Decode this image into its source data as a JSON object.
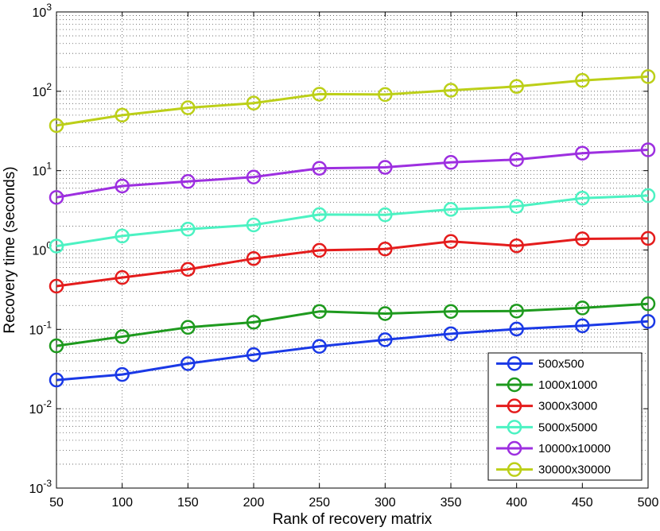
{
  "chart_data": {
    "type": "line",
    "xlabel": "Rank of recovery matrix",
    "ylabel": "Recovery time (seconds)",
    "yscale": "log",
    "xlim": [
      50,
      500
    ],
    "ylim": [
      0.001,
      1000
    ],
    "grid": "on (major and minor, dotted)",
    "legend_position": "bottom-right",
    "x": [
      50,
      100,
      150,
      200,
      250,
      300,
      350,
      400,
      450,
      500
    ],
    "x_tick_labels": [
      "50",
      "100",
      "150",
      "200",
      "250",
      "300",
      "350",
      "400",
      "450",
      "500"
    ],
    "y_tick_labels": [
      {
        "base": "10",
        "exp": "-3"
      },
      {
        "base": "10",
        "exp": "-2"
      },
      {
        "base": "10",
        "exp": "-1"
      },
      {
        "base": "10",
        "exp": "0"
      },
      {
        "base": "10",
        "exp": "1"
      },
      {
        "base": "10",
        "exp": "2"
      },
      {
        "base": "10",
        "exp": "3"
      }
    ],
    "series": [
      {
        "name": "500x500",
        "color": "#1a39e6",
        "values": [
          0.023,
          0.027,
          0.037,
          0.048,
          0.061,
          0.074,
          0.088,
          0.101,
          0.111,
          0.126
        ]
      },
      {
        "name": "1000x1000",
        "color": "#1e9a1e",
        "values": [
          0.062,
          0.081,
          0.106,
          0.123,
          0.168,
          0.158,
          0.168,
          0.17,
          0.186,
          0.21
        ]
      },
      {
        "name": "3000x3000",
        "color": "#e41c1c",
        "values": [
          0.35,
          0.45,
          0.57,
          0.78,
          0.99,
          1.03,
          1.28,
          1.13,
          1.38,
          1.4
        ]
      },
      {
        "name": "5000x5000",
        "color": "#4cf2c2",
        "values": [
          1.12,
          1.5,
          1.83,
          2.07,
          2.8,
          2.78,
          3.25,
          3.55,
          4.5,
          4.85
        ]
      },
      {
        "name": "10000x10000",
        "color": "#9d2fe0",
        "values": [
          4.6,
          6.4,
          7.3,
          8.3,
          10.7,
          11.0,
          12.7,
          13.8,
          16.6,
          18.3
        ]
      },
      {
        "name": "30000x30000",
        "color": "#bccf18",
        "values": [
          37,
          50,
          62,
          71,
          92,
          91,
          103,
          115,
          137,
          153
        ]
      }
    ]
  }
}
